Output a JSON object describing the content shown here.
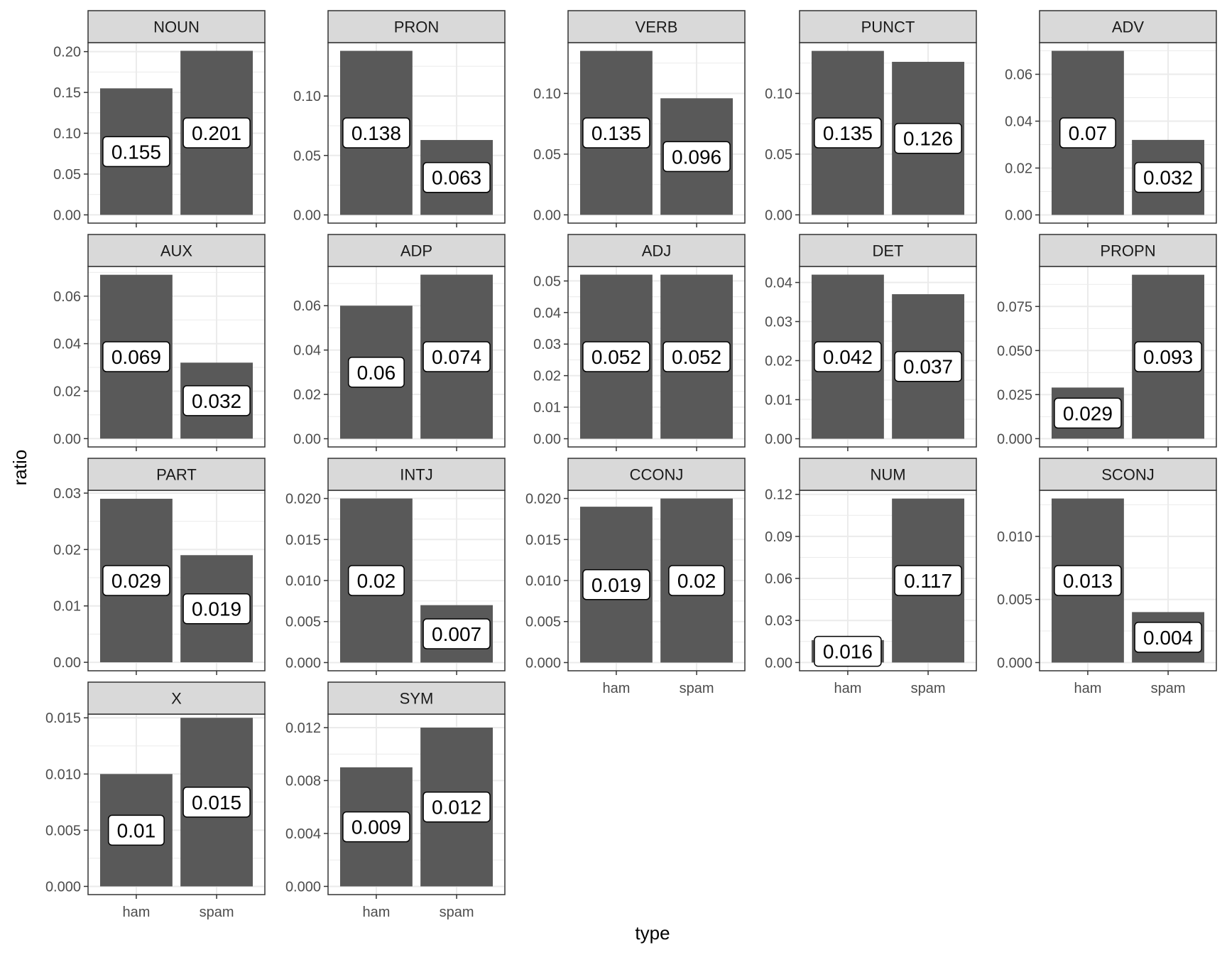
{
  "chart_data": {
    "type": "bar",
    "facet_by": "pos",
    "layout": {
      "columns": 5,
      "rows": 4
    },
    "categories": [
      "ham",
      "spam"
    ],
    "xlabel": "type",
    "ylabel": "ratio",
    "bar_color": "#595959",
    "strip_color": "#d9d9d9",
    "panel_border_color": "#333333",
    "grid_color": "#ebebeb",
    "facets": [
      {
        "name": "NOUN",
        "values": [
          0.155,
          0.201
        ],
        "labels": [
          "0.155",
          "0.201"
        ],
        "ticks": [
          0,
          0.05,
          0.1,
          0.15,
          0.2
        ],
        "tick_labels": [
          "0.00",
          "0.05",
          "0.10",
          "0.15",
          "0.20"
        ],
        "ylim": [
          -0.0101,
          0.211
        ]
      },
      {
        "name": "PRON",
        "values": [
          0.138,
          0.063
        ],
        "labels": [
          "0.138",
          "0.063"
        ],
        "ticks": [
          0,
          0.05,
          0.1
        ],
        "tick_labels": [
          "0.00",
          "0.05",
          "0.10"
        ],
        "ylim": [
          -0.0069,
          0.1449
        ]
      },
      {
        "name": "VERB",
        "values": [
          0.135,
          0.096
        ],
        "labels": [
          "0.135",
          "0.096"
        ],
        "ticks": [
          0,
          0.05,
          0.1
        ],
        "tick_labels": [
          "0.00",
          "0.05",
          "0.10"
        ],
        "ylim": [
          -0.0068,
          0.1418
        ]
      },
      {
        "name": "PUNCT",
        "values": [
          0.135,
          0.126
        ],
        "labels": [
          "0.135",
          "0.126"
        ],
        "ticks": [
          0,
          0.05,
          0.1
        ],
        "tick_labels": [
          "0.00",
          "0.05",
          "0.10"
        ],
        "ylim": [
          -0.0068,
          0.1418
        ]
      },
      {
        "name": "ADV",
        "values": [
          0.07,
          0.032
        ],
        "labels": [
          "0.07",
          "0.032"
        ],
        "ticks": [
          0,
          0.02,
          0.04,
          0.06
        ],
        "tick_labels": [
          "0.00",
          "0.02",
          "0.04",
          "0.06"
        ],
        "ylim": [
          -0.0035,
          0.0735
        ]
      },
      {
        "name": "AUX",
        "values": [
          0.069,
          0.032
        ],
        "labels": [
          "0.069",
          "0.032"
        ],
        "ticks": [
          0,
          0.02,
          0.04,
          0.06
        ],
        "tick_labels": [
          "0.00",
          "0.02",
          "0.04",
          "0.06"
        ],
        "ylim": [
          -0.0035,
          0.0725
        ]
      },
      {
        "name": "ADP",
        "values": [
          0.06,
          0.074
        ],
        "labels": [
          "0.06",
          "0.074"
        ],
        "ticks": [
          0,
          0.02,
          0.04,
          0.06
        ],
        "tick_labels": [
          "0.00",
          "0.02",
          "0.04",
          "0.06"
        ],
        "ylim": [
          -0.0037,
          0.0777
        ]
      },
      {
        "name": "ADJ",
        "values": [
          0.052,
          0.052
        ],
        "labels": [
          "0.052",
          "0.052"
        ],
        "ticks": [
          0,
          0.01,
          0.02,
          0.03,
          0.04,
          0.05
        ],
        "tick_labels": [
          "0.00",
          "0.01",
          "0.02",
          "0.03",
          "0.04",
          "0.05"
        ],
        "ylim": [
          -0.0026,
          0.0546
        ]
      },
      {
        "name": "DET",
        "values": [
          0.042,
          0.037
        ],
        "labels": [
          "0.042",
          "0.037"
        ],
        "ticks": [
          0,
          0.01,
          0.02,
          0.03,
          0.04
        ],
        "tick_labels": [
          "0.00",
          "0.01",
          "0.02",
          "0.03",
          "0.04"
        ],
        "ylim": [
          -0.0021,
          0.0441
        ]
      },
      {
        "name": "PROPN",
        "values": [
          0.029,
          0.093
        ],
        "labels": [
          "0.029",
          "0.093"
        ],
        "ticks": [
          0,
          0.025,
          0.05,
          0.075
        ],
        "tick_labels": [
          "0.000",
          "0.025",
          "0.050",
          "0.075"
        ],
        "ylim": [
          -0.0047,
          0.0977
        ]
      },
      {
        "name": "PART",
        "values": [
          0.029,
          0.019
        ],
        "labels": [
          "0.029",
          "0.019"
        ],
        "ticks": [
          0,
          0.01,
          0.02,
          0.03
        ],
        "tick_labels": [
          "0.00",
          "0.01",
          "0.02",
          "0.03"
        ],
        "ylim": [
          -0.0015,
          0.0305
        ]
      },
      {
        "name": "INTJ",
        "values": [
          0.02,
          0.007
        ],
        "labels": [
          "0.02",
          "0.007"
        ],
        "ticks": [
          0,
          0.005,
          0.01,
          0.015,
          0.02
        ],
        "tick_labels": [
          "0.000",
          "0.005",
          "0.010",
          "0.015",
          "0.020"
        ],
        "ylim": [
          -0.001,
          0.021
        ]
      },
      {
        "name": "CCONJ",
        "values": [
          0.019,
          0.02
        ],
        "labels": [
          "0.019",
          "0.02"
        ],
        "ticks": [
          0,
          0.005,
          0.01,
          0.015,
          0.02
        ],
        "tick_labels": [
          "0.000",
          "0.005",
          "0.010",
          "0.015",
          "0.020"
        ],
        "ylim": [
          -0.001,
          0.021
        ]
      },
      {
        "name": "NUM",
        "values": [
          0.016,
          0.117
        ],
        "labels": [
          "0.016",
          "0.117"
        ],
        "ticks": [
          0,
          0.03,
          0.06,
          0.09,
          0.12
        ],
        "tick_labels": [
          "0.00",
          "0.03",
          "0.06",
          "0.09",
          "0.12"
        ],
        "ylim": [
          -0.0059,
          0.1229
        ]
      },
      {
        "name": "SCONJ",
        "values": [
          0.013,
          0.004
        ],
        "labels": [
          "0.013",
          "0.004"
        ],
        "ticks": [
          0,
          0.005,
          0.01
        ],
        "tick_labels": [
          "0.000",
          "0.005",
          "0.010"
        ],
        "ylim": [
          -0.00065,
          0.01365
        ]
      },
      {
        "name": "X",
        "values": [
          0.01,
          0.015
        ],
        "labels": [
          "0.01",
          "0.015"
        ],
        "ticks": [
          0,
          0.005,
          0.01,
          0.015
        ],
        "tick_labels": [
          "0.000",
          "0.005",
          "0.010",
          "0.015"
        ],
        "ylim": [
          -0.00073,
          0.01533
        ]
      },
      {
        "name": "SYM",
        "values": [
          0.009,
          0.012
        ],
        "labels": [
          "0.009",
          "0.012"
        ],
        "ticks": [
          0,
          0.004,
          0.008,
          0.012
        ],
        "tick_labels": [
          "0.000",
          "0.004",
          "0.008",
          "0.012"
        ],
        "ylim": [
          -0.00062,
          0.01302
        ]
      }
    ]
  }
}
